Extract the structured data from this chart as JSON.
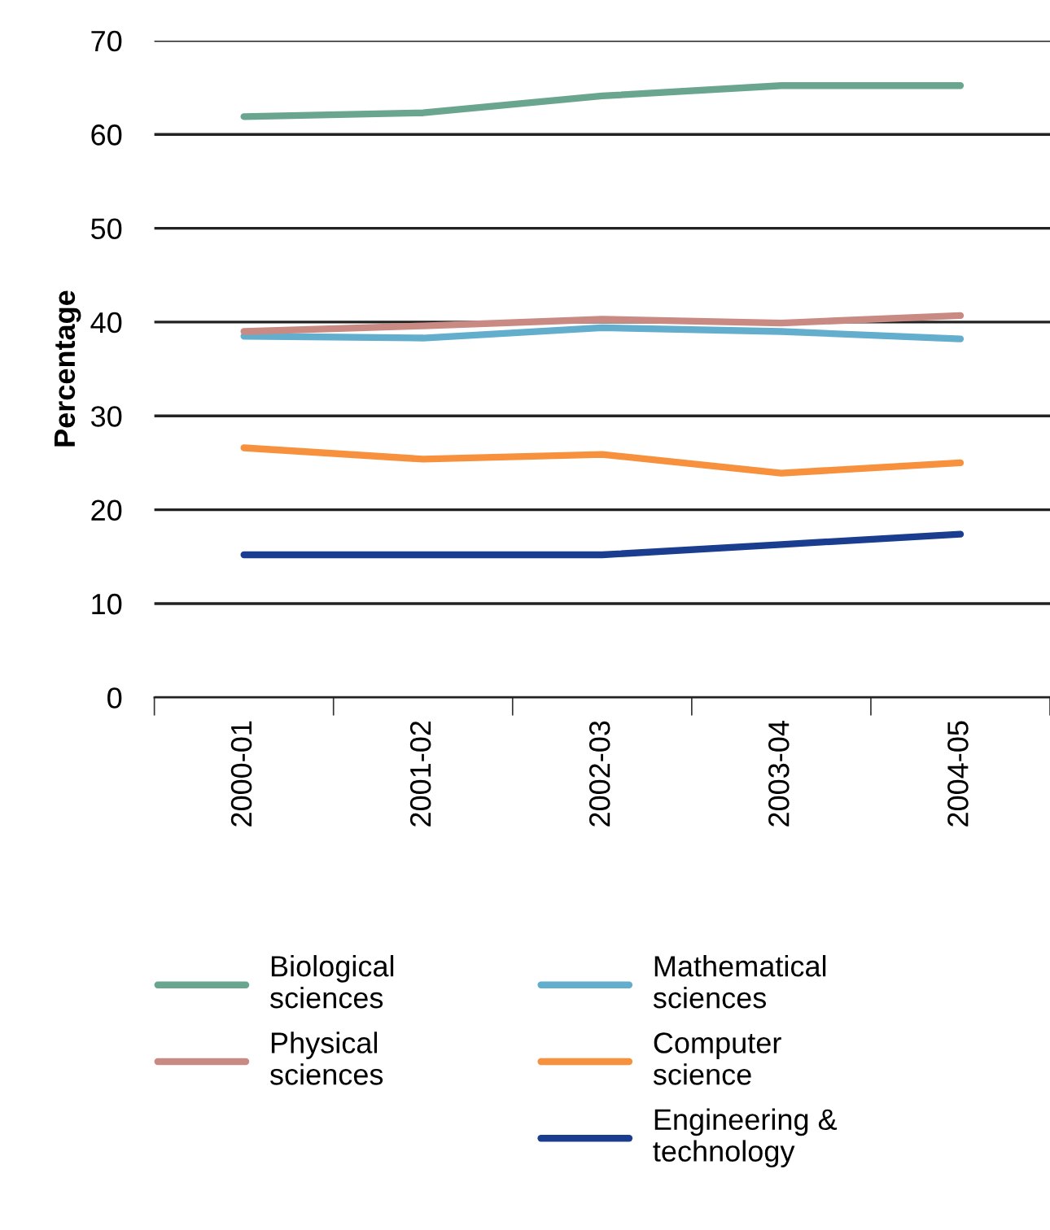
{
  "chart_data": {
    "type": "line",
    "ylabel": "Percentage",
    "categories": [
      "2000-01",
      "2001-02",
      "2002-03",
      "2003-04",
      "2004-05"
    ],
    "ylim": [
      0,
      70
    ],
    "yticks": [
      0,
      10,
      20,
      30,
      40,
      50,
      60,
      70
    ],
    "grid": "y",
    "legend": "bottom",
    "marker": "none",
    "line_style": "solid",
    "series": [
      {
        "name": "Biological\nsciences",
        "color": "#6aa58f",
        "values": [
          61.9,
          62.3,
          64.1,
          65.2,
          65.2
        ]
      },
      {
        "name": "Mathematical\nsciences",
        "color": "#63aecd",
        "values": [
          38.5,
          38.3,
          39.4,
          39.0,
          38.2
        ]
      },
      {
        "name": "Physical\nsciences",
        "color": "#c98a84",
        "values": [
          39.0,
          39.6,
          40.3,
          39.9,
          40.7
        ]
      },
      {
        "name": "Computer\nscience",
        "color": "#f7913d",
        "values": [
          26.6,
          25.4,
          25.9,
          23.9,
          25.0
        ]
      },
      {
        "name": "Engineering &\ntechnology",
        "color": "#1a3d8f",
        "values": [
          15.2,
          15.2,
          15.2,
          16.3,
          17.4
        ]
      }
    ]
  }
}
